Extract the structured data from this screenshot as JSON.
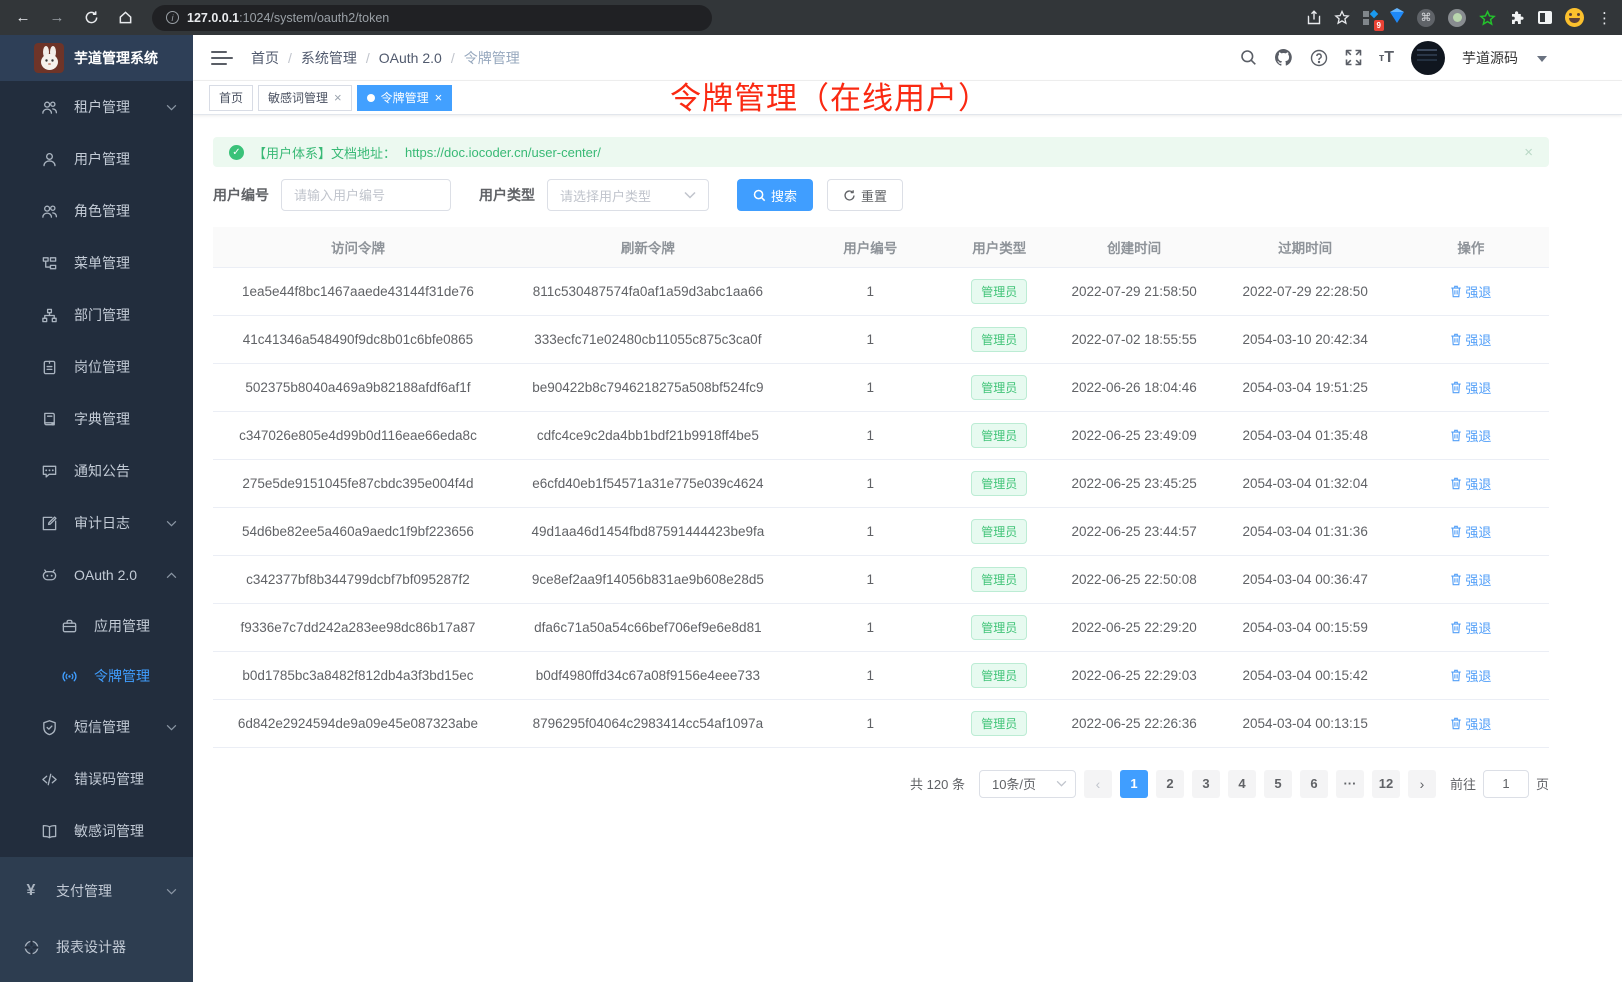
{
  "browser": {
    "url_host": "127.0.0.1",
    "url_rest": ":1024/system/oauth2/token",
    "extension_badge": "9"
  },
  "app_title": "芋道管理系统",
  "sidebar": {
    "menu_items": [
      {
        "icon": "users-icon",
        "label": "租户管理",
        "arrow": "down"
      },
      {
        "icon": "user-icon",
        "label": "用户管理"
      },
      {
        "icon": "users-icon",
        "label": "角色管理"
      },
      {
        "icon": "tree-icon",
        "label": "菜单管理"
      },
      {
        "icon": "org-icon",
        "label": "部门管理"
      },
      {
        "icon": "badge-icon",
        "label": "岗位管理"
      },
      {
        "icon": "dict-icon",
        "label": "字典管理"
      },
      {
        "icon": "message-icon",
        "label": "通知公告"
      },
      {
        "icon": "edit-icon",
        "label": "审计日志",
        "arrow": "down"
      },
      {
        "icon": "robot-icon",
        "label": "OAuth 2.0",
        "arrow": "up"
      },
      {
        "icon": "briefcase-icon",
        "label": "应用管理",
        "child": true
      },
      {
        "icon": "broadcast-icon",
        "label": "令牌管理",
        "child": true,
        "active": true
      },
      {
        "icon": "shield-icon",
        "label": "短信管理",
        "arrow": "down"
      },
      {
        "icon": "code-icon",
        "label": "错误码管理"
      },
      {
        "icon": "book-icon",
        "label": "敏感词管理"
      }
    ],
    "root_items": [
      {
        "icon": "yen-icon",
        "label": "支付管理",
        "arrow": "down"
      },
      {
        "icon": "chart-icon",
        "label": "报表设计器"
      }
    ]
  },
  "header": {
    "breadcrumb": [
      "首页",
      "系统管理",
      "OAuth 2.0",
      "令牌管理"
    ],
    "user_name": "芋道源码"
  },
  "tags": [
    {
      "label": "首页"
    },
    {
      "label": "敏感词管理",
      "closable": true
    },
    {
      "label": "令牌管理",
      "closable": true,
      "active": true
    }
  ],
  "annotation": "令牌管理（在线用户）",
  "alert": {
    "text": "【用户体系】文档地址：",
    "link": "https://doc.iocoder.cn/user-center/"
  },
  "filters": {
    "user_id_label": "用户编号",
    "user_id_placeholder": "请输入用户编号",
    "user_type_label": "用户类型",
    "user_type_placeholder": "请选择用户类型",
    "search_label": "搜索",
    "reset_label": "重置"
  },
  "table": {
    "headers": [
      "访问令牌",
      "刷新令牌",
      "用户编号",
      "用户类型",
      "创建时间",
      "过期时间",
      "操作"
    ],
    "action_label": "强退",
    "rows": [
      {
        "access": "1ea5e44f8bc1467aaede43144f31de76",
        "refresh": "811c530487574fa0af1a59d3abc1aa66",
        "user_id": "1",
        "user_type": "管理员",
        "created": "2022-07-29 21:58:50",
        "expires": "2022-07-29 22:28:50"
      },
      {
        "access": "41c41346a548490f9dc8b01c6bfe0865",
        "refresh": "333ecfc71e02480cb11055c875c3ca0f",
        "user_id": "1",
        "user_type": "管理员",
        "created": "2022-07-02 18:55:55",
        "expires": "2054-03-10 20:42:34"
      },
      {
        "access": "502375b8040a469a9b82188afdf6af1f",
        "refresh": "be90422b8c7946218275a508bf524fc9",
        "user_id": "1",
        "user_type": "管理员",
        "created": "2022-06-26 18:04:46",
        "expires": "2054-03-04 19:51:25"
      },
      {
        "access": "c347026e805e4d99b0d116eae66eda8c",
        "refresh": "cdfc4ce9c2da4bb1bdf21b9918ff4be5",
        "user_id": "1",
        "user_type": "管理员",
        "created": "2022-06-25 23:49:09",
        "expires": "2054-03-04 01:35:48"
      },
      {
        "access": "275e5de9151045fe87cbdc395e004f4d",
        "refresh": "e6cfd40eb1f54571a31e775e039c4624",
        "user_id": "1",
        "user_type": "管理员",
        "created": "2022-06-25 23:45:25",
        "expires": "2054-03-04 01:32:04"
      },
      {
        "access": "54d6be82ee5a460a9aedc1f9bf223656",
        "refresh": "49d1aa46d1454fbd87591444423be9fa",
        "user_id": "1",
        "user_type": "管理员",
        "created": "2022-06-25 23:44:57",
        "expires": "2054-03-04 01:31:36"
      },
      {
        "access": "c342377bf8b344799dcbf7bf095287f2",
        "refresh": "9ce8ef2aa9f14056b831ae9b608e28d5",
        "user_id": "1",
        "user_type": "管理员",
        "created": "2022-06-25 22:50:08",
        "expires": "2054-03-04 00:36:47"
      },
      {
        "access": "f9336e7c7dd242a283ee98dc86b17a87",
        "refresh": "dfa6c71a50a54c66bef706ef9e6e8d81",
        "user_id": "1",
        "user_type": "管理员",
        "created": "2022-06-25 22:29:20",
        "expires": "2054-03-04 00:15:59"
      },
      {
        "access": "b0d1785bc3a8482f812db4a3f3bd15ec",
        "refresh": "b0df4980ffd34c67a08f9156e4eee733",
        "user_id": "1",
        "user_type": "管理员",
        "created": "2022-06-25 22:29:03",
        "expires": "2054-03-04 00:15:42"
      },
      {
        "access": "6d842e2924594de9a09e45e087323abe",
        "refresh": "8796295f04064c2983414cc54af1097a",
        "user_id": "1",
        "user_type": "管理员",
        "created": "2022-06-25 22:26:36",
        "expires": "2054-03-04 00:13:15"
      }
    ]
  },
  "pagination": {
    "total": "共 120 条",
    "page_size": "10条/页",
    "pages": [
      "1",
      "2",
      "3",
      "4",
      "5",
      "6",
      "···",
      "12"
    ],
    "active_page": "1",
    "goto_label": "前往",
    "goto_value": "1",
    "page_unit": "页"
  },
  "colors": {
    "accent": "#409eff",
    "success": "#3ac279",
    "annotation_red": "#fa2912"
  }
}
